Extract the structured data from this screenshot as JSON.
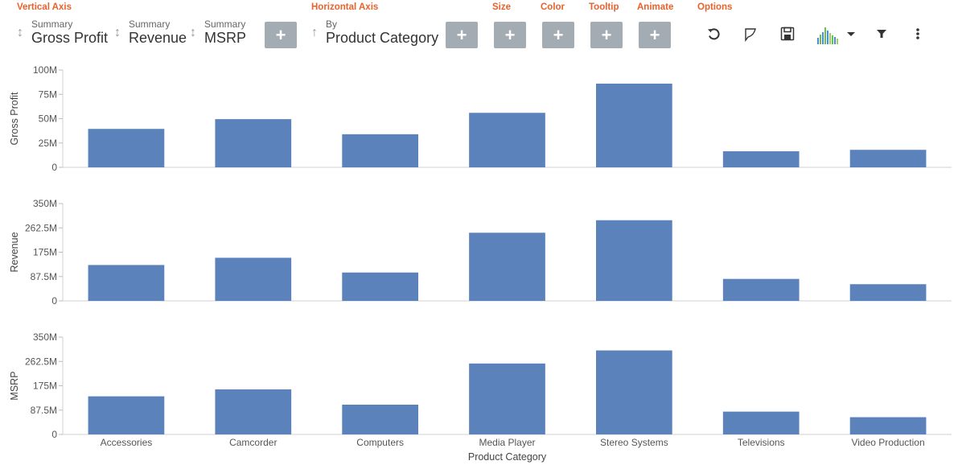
{
  "toolbar": {
    "sections": {
      "vertical_axis": "Vertical Axis",
      "horizontal_axis": "Horizontal Axis",
      "size": "Size",
      "color": "Color",
      "tooltip": "Tooltip",
      "animate": "Animate",
      "options": "Options"
    },
    "vertical_fields": [
      {
        "sub": "Summary",
        "main": "Gross Profit"
      },
      {
        "sub": "Summary",
        "main": "Revenue"
      },
      {
        "sub": "Summary",
        "main": "MSRP"
      }
    ],
    "horizontal_field": {
      "sub": "By",
      "main": "Product Category"
    },
    "add_label": "+",
    "icons": [
      "undo-icon",
      "brush-icon",
      "save-icon",
      "chart-type-icon",
      "dropdown-caret-icon",
      "filter-icon",
      "more-vert-icon"
    ]
  },
  "colors": {
    "accent": "#e8622c",
    "bar": "#5b82bb",
    "button": "#a3abb3"
  },
  "chart_data": {
    "type": "bar",
    "categories": [
      "Accessories",
      "Camcorder",
      "Computers",
      "Media Player",
      "Stereo Systems",
      "Televisions",
      "Video Production"
    ],
    "xlabel": "Product Category",
    "grid": false,
    "panels": [
      {
        "ylabel": "Gross Profit",
        "ylim": [
          0,
          100000000
        ],
        "ticks": [
          "0",
          "25M",
          "50M",
          "75M",
          "100M"
        ],
        "values": [
          39500000,
          49500000,
          34000000,
          56000000,
          86000000,
          16500000,
          18000000
        ]
      },
      {
        "ylabel": "Revenue",
        "ylim": [
          0,
          350000000
        ],
        "ticks": [
          "0",
          "87.5M",
          "175M",
          "262.5M",
          "350M"
        ],
        "values": [
          129000000,
          155000000,
          102000000,
          245000000,
          290000000,
          79000000,
          60000000
        ]
      },
      {
        "ylabel": "MSRP",
        "ylim": [
          0,
          350000000
        ],
        "ticks": [
          "0",
          "87.5M",
          "175M",
          "262.5M",
          "350M"
        ],
        "values": [
          137000000,
          162000000,
          107000000,
          255000000,
          302000000,
          82000000,
          62000000
        ]
      }
    ]
  }
}
